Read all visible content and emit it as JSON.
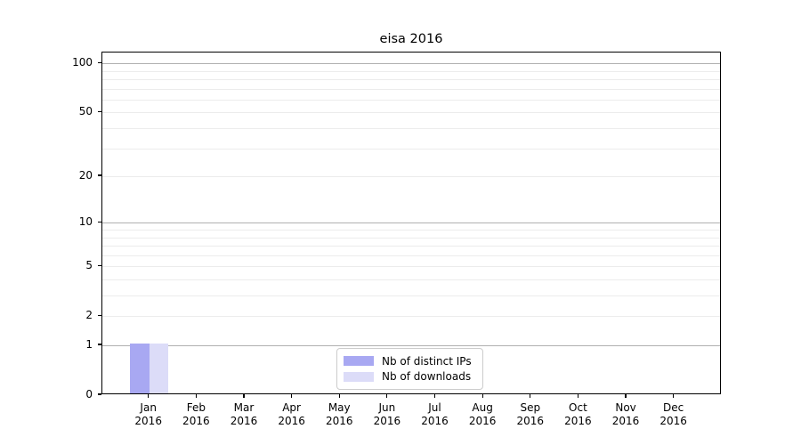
{
  "chart_data": {
    "type": "bar",
    "title": "eisa 2016",
    "categories": [
      "Jan",
      "Feb",
      "Mar",
      "Apr",
      "May",
      "Jun",
      "Jul",
      "Aug",
      "Sep",
      "Oct",
      "Nov",
      "Dec"
    ],
    "category_year": "2016",
    "series": [
      {
        "name": "Nb of distinct IPs",
        "color": "#a8a8f2",
        "values": [
          1,
          0,
          0,
          0,
          0,
          0,
          0,
          0,
          0,
          0,
          0,
          0
        ]
      },
      {
        "name": "Nb of downloads",
        "color": "#dcdcf8",
        "values": [
          1,
          0,
          0,
          0,
          0,
          0,
          0,
          0,
          0,
          0,
          0,
          0
        ]
      }
    ],
    "yscale": "log10(1+v)",
    "ylim": [
      0,
      116
    ],
    "y_tick_values": [
      0,
      1,
      2,
      5,
      10,
      20,
      50,
      100
    ],
    "y_tick_labels": [
      "0",
      "1",
      "2",
      "5",
      "10",
      "20",
      "50",
      "100"
    ],
    "y_major_gridlines": [
      1,
      10,
      100
    ],
    "y_minor_gridlines": [
      2,
      3,
      4,
      5,
      6,
      7,
      8,
      9,
      20,
      30,
      40,
      50,
      60,
      70,
      80,
      90
    ],
    "grid": "on",
    "legend_position": "lower center",
    "colors": {
      "major_grid": "#b0b0b0",
      "minor_grid": "#ececec",
      "axis": "#000000",
      "background": "#ffffff"
    }
  }
}
